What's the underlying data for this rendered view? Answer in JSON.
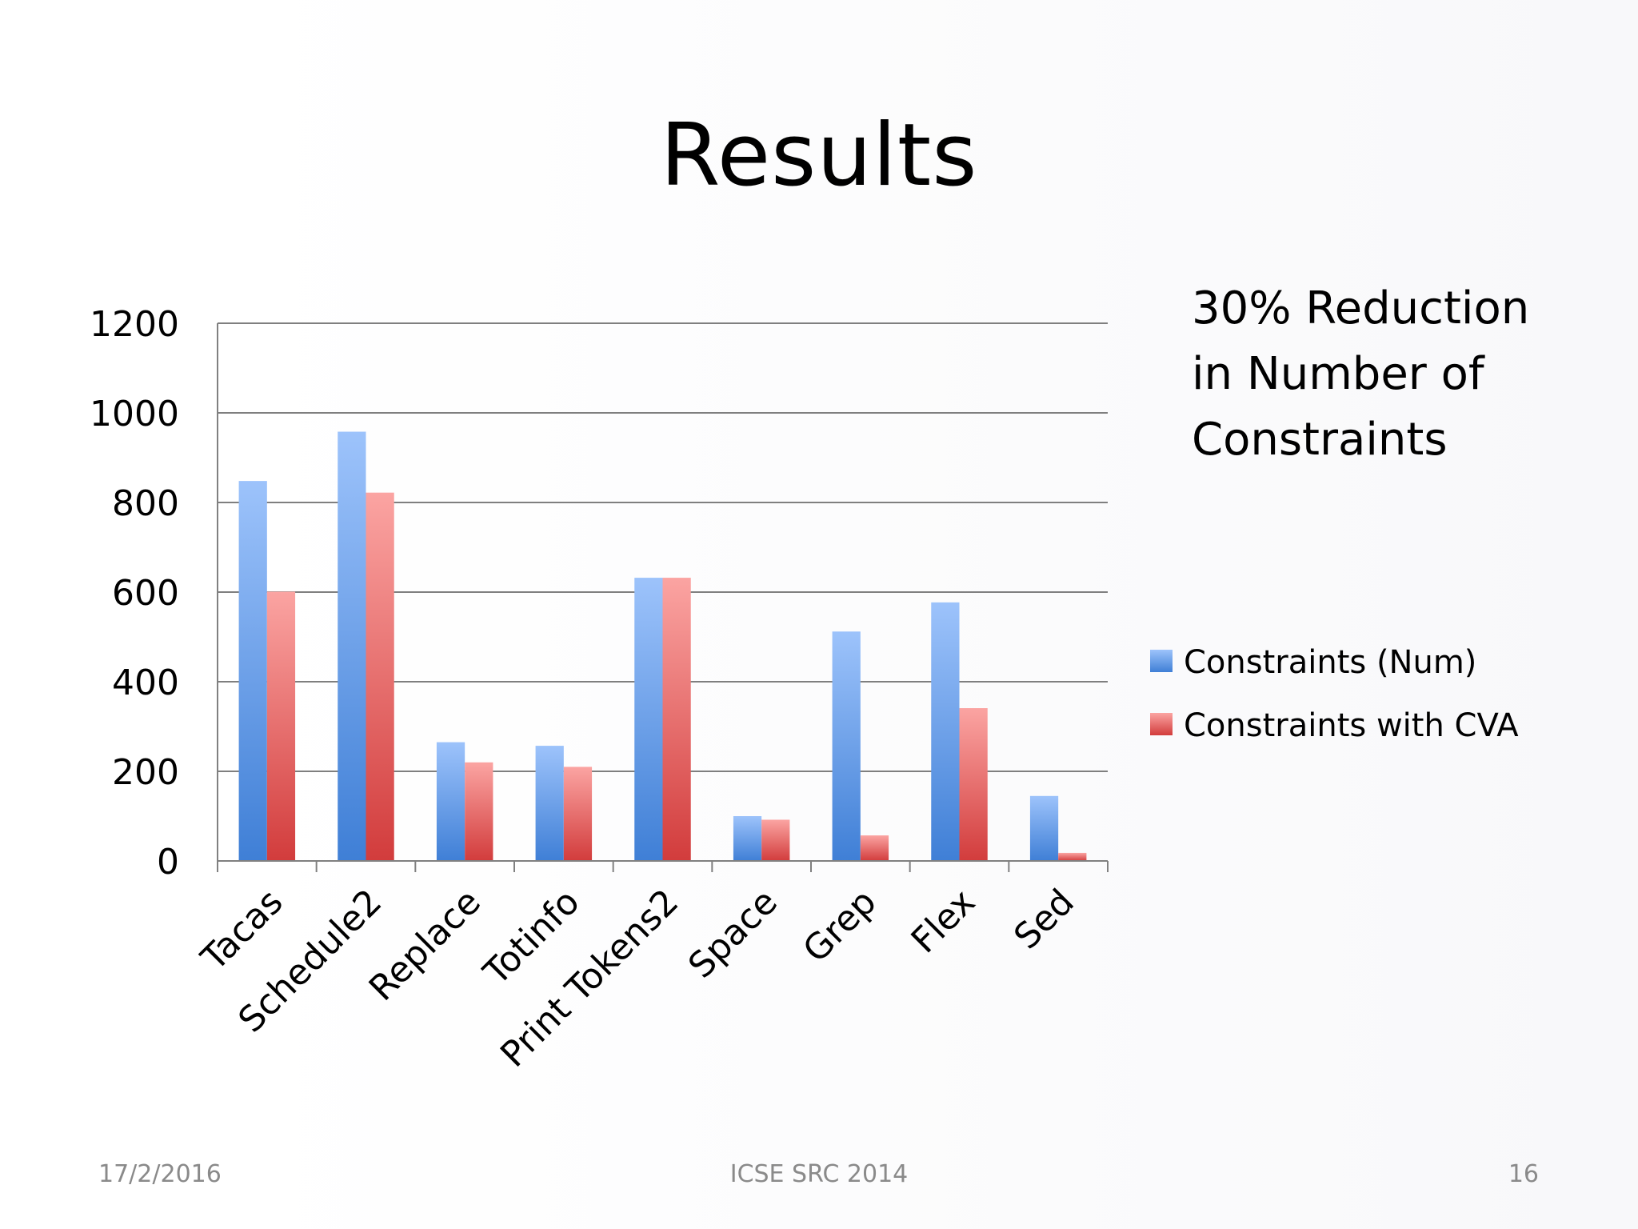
{
  "slide": {
    "title": "Results",
    "note_lines": [
      "30% Reduction",
      "in Number of",
      "Constraints"
    ],
    "footer": {
      "date": "17/2/2016",
      "center": "ICSE SRC 2014",
      "page": "16"
    }
  },
  "colors": {
    "series_blue_top": "#9dc3fb",
    "series_blue_bottom": "#3f7fd6",
    "series_red_top": "#fba4a2",
    "series_red_bottom": "#d23c3c",
    "grid": "#7f7f7f",
    "axis": "#808080"
  },
  "chart_data": {
    "type": "bar",
    "title": "",
    "xlabel": "",
    "ylabel": "",
    "ylim": [
      0,
      1200
    ],
    "yticks": [
      0,
      200,
      400,
      600,
      800,
      1000,
      1200
    ],
    "grid": true,
    "legend_position": "right",
    "categories": [
      "Tacas",
      "Schedule2",
      "Replace",
      "Totinfo",
      "Print Tokens2",
      "Space",
      "Grep",
      "Flex",
      "Sed"
    ],
    "series": [
      {
        "name": "Constraints (Num)",
        "values": [
          848,
          958,
          265,
          257,
          632,
          100,
          512,
          577,
          145
        ]
      },
      {
        "name": "Constraints with CVA",
        "values": [
          601,
          822,
          220,
          210,
          632,
          92,
          57,
          341,
          18
        ]
      }
    ]
  }
}
